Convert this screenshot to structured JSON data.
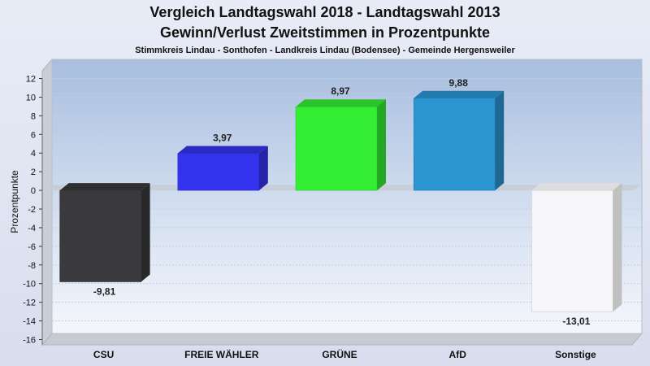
{
  "chart_data": {
    "type": "bar",
    "title": "Vergleich Landtagswahl 2018 - Landtagswahl 2013",
    "subtitle": "Gewinn/Verlust Zweitstimmen in Prozentpunkte",
    "subsubtitle": "Stimmkreis Lindau - Sonthofen - Landkreis Lindau (Bodensee) - Gemeinde Hergensweiler",
    "ylabel": "Prozentpunkte",
    "xlabel": "",
    "ylim": [
      -16,
      12
    ],
    "yticks": [
      12,
      10,
      8,
      6,
      4,
      2,
      0,
      -2,
      -4,
      -6,
      -8,
      -10,
      -12,
      -14,
      -16
    ],
    "grid": true,
    "categories": [
      "CSU",
      "FREIE WÄHLER",
      "GRÜNE",
      "AfD",
      "Sonstige"
    ],
    "values": [
      -9.81,
      3.97,
      8.97,
      9.88,
      -13.01
    ],
    "value_labels": [
      "-9,81",
      "3,97",
      "8,97",
      "9,88",
      "-13,01"
    ],
    "colors": [
      "#3a3a3c",
      "#3333ee",
      "#33ee33",
      "#2b95d2",
      "#f6f6f8"
    ]
  }
}
